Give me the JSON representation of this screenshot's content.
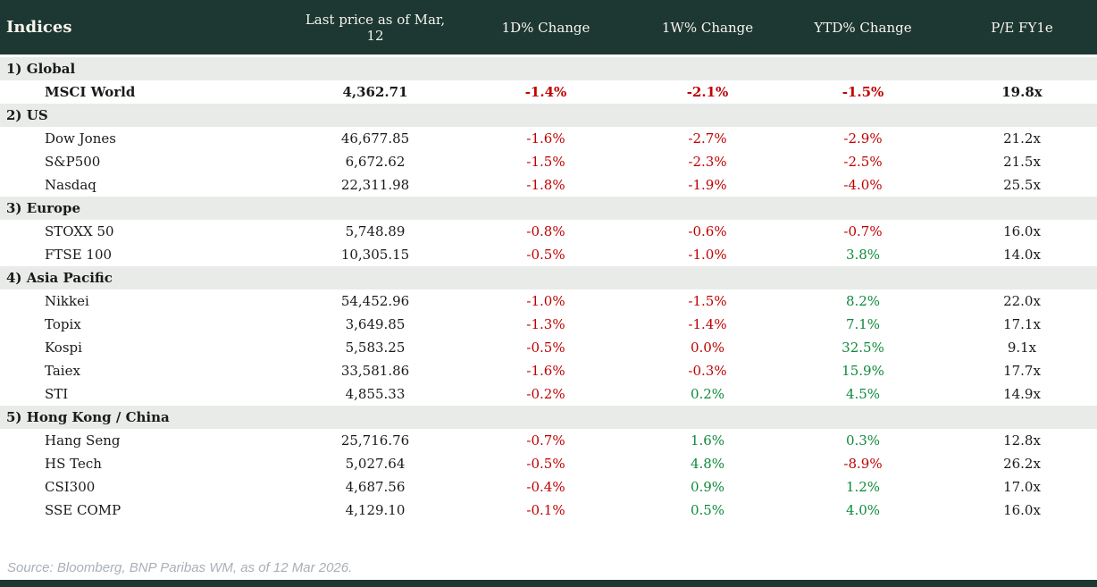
{
  "colors": {
    "header_bg": "#1d3732",
    "section_bg": "#e8ebe8",
    "negative": "#c00000",
    "positive": "#0e8a3c",
    "header_text": "#f7f4ed",
    "body_text": "#1a1a1a",
    "source_text": "#a9b0b6"
  },
  "table": {
    "columns": [
      "Indices",
      "Last price as of Mar, 12",
      "1D% Change",
      "1W% Change",
      "YTD% Change",
      "P/E FY1e"
    ],
    "sections": [
      {
        "label": "1) Global",
        "rows": [
          {
            "name": "MSCI World",
            "bold": true,
            "last_price": "4,362.71",
            "d1": "-1.4%",
            "d1_color": "negative",
            "w1": "-2.1%",
            "w1_color": "negative",
            "ytd": "-1.5%",
            "ytd_color": "negative",
            "pe": "19.8x"
          }
        ]
      },
      {
        "label": "2) US",
        "rows": [
          {
            "name": "Dow Jones",
            "bold": false,
            "last_price": "46,677.85",
            "d1": "-1.6%",
            "d1_color": "negative",
            "w1": "-2.7%",
            "w1_color": "negative",
            "ytd": "-2.9%",
            "ytd_color": "negative",
            "pe": "21.2x"
          },
          {
            "name": "S&P500",
            "bold": false,
            "last_price": "6,672.62",
            "d1": "-1.5%",
            "d1_color": "negative",
            "w1": "-2.3%",
            "w1_color": "negative",
            "ytd": "-2.5%",
            "ytd_color": "negative",
            "pe": "21.5x"
          },
          {
            "name": "Nasdaq",
            "bold": false,
            "last_price": "22,311.98",
            "d1": "-1.8%",
            "d1_color": "negative",
            "w1": "-1.9%",
            "w1_color": "negative",
            "ytd": "-4.0%",
            "ytd_color": "negative",
            "pe": "25.5x"
          }
        ]
      },
      {
        "label": "3) Europe",
        "rows": [
          {
            "name": "STOXX 50",
            "bold": false,
            "last_price": "5,748.89",
            "d1": "-0.8%",
            "d1_color": "negative",
            "w1": "-0.6%",
            "w1_color": "negative",
            "ytd": "-0.7%",
            "ytd_color": "negative",
            "pe": "16.0x"
          },
          {
            "name": "FTSE 100",
            "bold": false,
            "last_price": "10,305.15",
            "d1": "-0.5%",
            "d1_color": "negative",
            "w1": "-1.0%",
            "w1_color": "negative",
            "ytd": "3.8%",
            "ytd_color": "positive",
            "pe": "14.0x"
          }
        ]
      },
      {
        "label": "4) Asia Pacific",
        "rows": [
          {
            "name": "Nikkei",
            "bold": false,
            "last_price": "54,452.96",
            "d1": "-1.0%",
            "d1_color": "negative",
            "w1": "-1.5%",
            "w1_color": "negative",
            "ytd": "8.2%",
            "ytd_color": "positive",
            "pe": "22.0x"
          },
          {
            "name": "Topix",
            "bold": false,
            "last_price": "3,649.85",
            "d1": "-1.3%",
            "d1_color": "negative",
            "w1": "-1.4%",
            "w1_color": "negative",
            "ytd": "7.1%",
            "ytd_color": "positive",
            "pe": "17.1x"
          },
          {
            "name": "Kospi",
            "bold": false,
            "last_price": "5,583.25",
            "d1": "-0.5%",
            "d1_color": "negative",
            "w1": "0.0%",
            "w1_color": "negative",
            "ytd": "32.5%",
            "ytd_color": "positive",
            "pe": "9.1x"
          },
          {
            "name": "Taiex",
            "bold": false,
            "last_price": "33,581.86",
            "d1": "-1.6%",
            "d1_color": "negative",
            "w1": "-0.3%",
            "w1_color": "negative",
            "ytd": "15.9%",
            "ytd_color": "positive",
            "pe": "17.7x"
          },
          {
            "name": "STI",
            "bold": false,
            "last_price": "4,855.33",
            "d1": "-0.2%",
            "d1_color": "negative",
            "w1": "0.2%",
            "w1_color": "positive",
            "ytd": "4.5%",
            "ytd_color": "positive",
            "pe": "14.9x"
          }
        ]
      },
      {
        "label": "5) Hong Kong / China",
        "rows": [
          {
            "name": "Hang Seng",
            "bold": false,
            "last_price": "25,716.76",
            "d1": "-0.7%",
            "d1_color": "negative",
            "w1": "1.6%",
            "w1_color": "positive",
            "ytd": "0.3%",
            "ytd_color": "positive",
            "pe": "12.8x"
          },
          {
            "name": "HS Tech",
            "bold": false,
            "last_price": "5,027.64",
            "d1": "-0.5%",
            "d1_color": "negative",
            "w1": "4.8%",
            "w1_color": "positive",
            "ytd": "-8.9%",
            "ytd_color": "negative",
            "pe": "26.2x"
          },
          {
            "name": "CSI300",
            "bold": false,
            "last_price": "4,687.56",
            "d1": "-0.4%",
            "d1_color": "negative",
            "w1": "0.9%",
            "w1_color": "positive",
            "ytd": "1.2%",
            "ytd_color": "positive",
            "pe": "17.0x"
          },
          {
            "name": "SSE COMP",
            "bold": false,
            "last_price": "4,129.10",
            "d1": "-0.1%",
            "d1_color": "negative",
            "w1": "0.5%",
            "w1_color": "positive",
            "ytd": "4.0%",
            "ytd_color": "positive",
            "pe": "16.0x"
          }
        ]
      }
    ]
  },
  "footer": {
    "source": "Source: Bloomberg, BNP Paribas WM, as of 12 Mar 2026."
  }
}
